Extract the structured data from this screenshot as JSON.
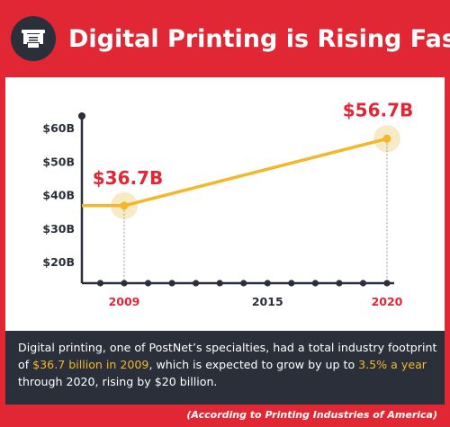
{
  "header": {
    "title": "Digital Printing is Rising Fast",
    "icon": "printer-icon"
  },
  "colors": {
    "red": "#e12634",
    "dark": "#2b2f3a",
    "line": "#f3b72a",
    "highlight": "#f3b72a"
  },
  "chart_data": {
    "type": "line",
    "title": "",
    "xlabel": "",
    "ylabel": "",
    "x_tick_labels": [
      "2009",
      "2015",
      "2020"
    ],
    "y_tick_labels": [
      "$60B",
      "$50B",
      "$40B",
      "$30B",
      "$20B"
    ],
    "ylim": [
      10,
      62
    ],
    "xlim": [
      2008,
      2021
    ],
    "grid": false,
    "series": [
      {
        "points": [
          {
            "x": 2008,
            "y": 36.7
          },
          {
            "x": 2009,
            "y": 36.7
          },
          {
            "x": 2020,
            "y": 56.7
          }
        ]
      }
    ],
    "annotations": [
      {
        "x": 2009,
        "y": 36.7,
        "label": "$36.7B"
      },
      {
        "x": 2020,
        "y": 56.7,
        "label": "$56.7B"
      }
    ]
  },
  "footer": {
    "desc_1": "Digital printing, one of PostNet’s specialties, had a total industry footprint of ",
    "desc_2": "$36.7 billion in 2009",
    "desc_3": ", which is expected to grow by up to ",
    "desc_4": "3.5% a year",
    "desc_5": " through 2020, rising by $20 billion."
  },
  "source": "(According to Printing Industries of America)"
}
